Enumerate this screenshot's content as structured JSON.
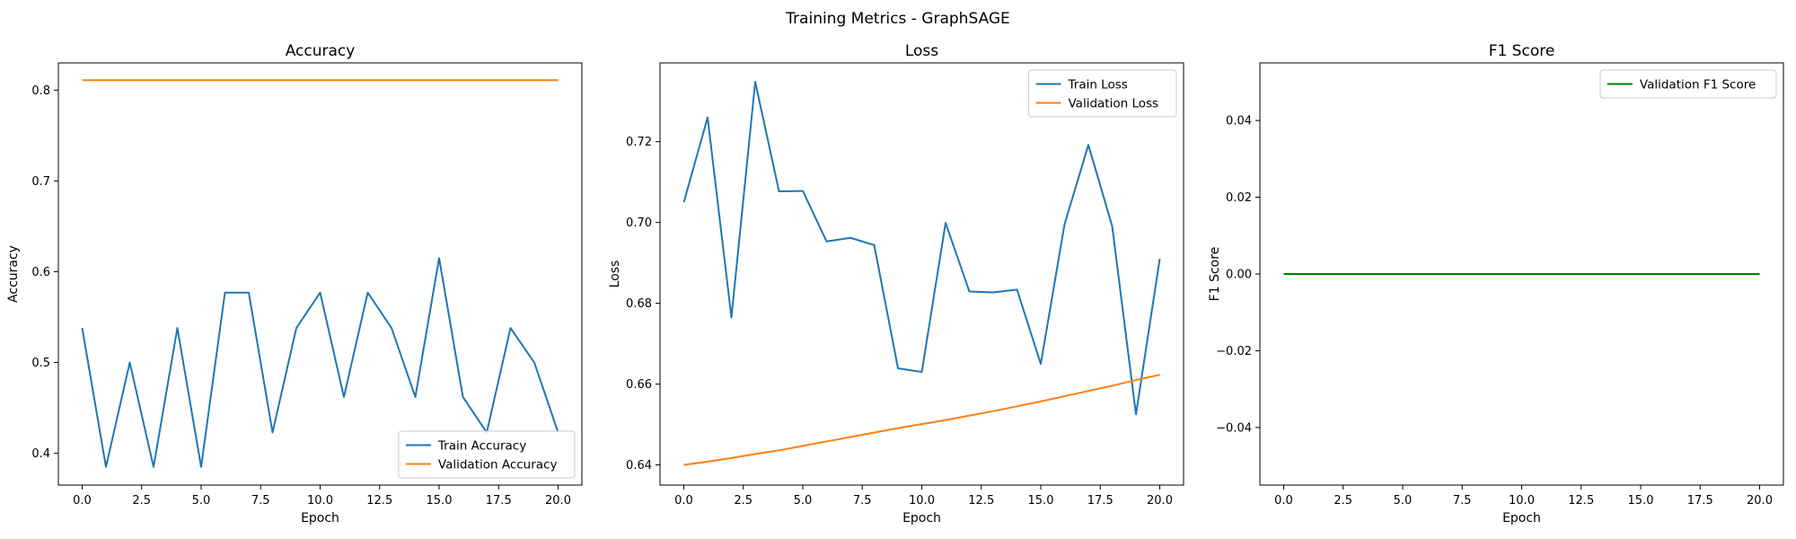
{
  "figure": {
    "title": "Training Metrics - GraphSAGE"
  },
  "colors": {
    "blue": "#1f77b4",
    "orange": "#ff7f0e",
    "green": "#008000"
  },
  "chart_data": [
    {
      "type": "line",
      "title": "Accuracy",
      "xlabel": "Epoch",
      "ylabel": "Accuracy",
      "xlim": [
        -1,
        21
      ],
      "ylim": [
        0.365,
        0.83
      ],
      "xticks": [
        0.0,
        2.5,
        5.0,
        7.5,
        10.0,
        12.5,
        15.0,
        17.5,
        20.0
      ],
      "xtick_labels": [
        "0.0",
        "2.5",
        "5.0",
        "7.5",
        "10.0",
        "12.5",
        "15.0",
        "17.5",
        "20.0"
      ],
      "yticks": [
        0.4,
        0.5,
        0.6,
        0.7,
        0.8
      ],
      "ytick_labels": [
        "0.4",
        "0.5",
        "0.6",
        "0.7",
        "0.8"
      ],
      "legend_position": "lower-right",
      "x": [
        0,
        1,
        2,
        3,
        4,
        5,
        6,
        7,
        8,
        9,
        10,
        11,
        12,
        13,
        14,
        15,
        16,
        17,
        18,
        19,
        20
      ],
      "series": [
        {
          "name": "Train Accuracy",
          "color": "blue",
          "values": [
            0.538,
            0.385,
            0.5,
            0.385,
            0.538,
            0.385,
            0.577,
            0.577,
            0.423,
            0.538,
            0.577,
            0.462,
            0.577,
            0.538,
            0.462,
            0.615,
            0.462,
            0.423,
            0.538,
            0.5,
            0.423
          ]
        },
        {
          "name": "Validation Accuracy",
          "color": "orange",
          "values": [
            0.811,
            0.811,
            0.811,
            0.811,
            0.811,
            0.811,
            0.811,
            0.811,
            0.811,
            0.811,
            0.811,
            0.811,
            0.811,
            0.811,
            0.811,
            0.811,
            0.811,
            0.811,
            0.811,
            0.811,
            0.811
          ]
        }
      ]
    },
    {
      "type": "line",
      "title": "Loss",
      "xlabel": "Epoch",
      "ylabel": "Loss",
      "xlim": [
        -1,
        21
      ],
      "ylim": [
        0.635,
        0.7395
      ],
      "xticks": [
        0.0,
        2.5,
        5.0,
        7.5,
        10.0,
        12.5,
        15.0,
        17.5,
        20.0
      ],
      "xtick_labels": [
        "0.0",
        "2.5",
        "5.0",
        "7.5",
        "10.0",
        "12.5",
        "15.0",
        "17.5",
        "20.0"
      ],
      "yticks": [
        0.64,
        0.66,
        0.68,
        0.7,
        0.72
      ],
      "ytick_labels": [
        "0.64",
        "0.66",
        "0.68",
        "0.70",
        "0.72"
      ],
      "legend_position": "upper-right",
      "x": [
        0,
        1,
        2,
        3,
        4,
        5,
        6,
        7,
        8,
        9,
        10,
        11,
        12,
        13,
        14,
        15,
        16,
        17,
        18,
        19,
        20
      ],
      "series": [
        {
          "name": "Train Loss",
          "color": "blue",
          "values": [
            0.705,
            0.726,
            0.6765,
            0.7348,
            0.7077,
            0.7078,
            0.6953,
            0.6962,
            0.6944,
            0.6639,
            0.663,
            0.6999,
            0.6829,
            0.6827,
            0.6834,
            0.665,
            0.6996,
            0.7192,
            0.6991,
            0.6525,
            0.691
          ]
        },
        {
          "name": "Validation Loss",
          "color": "orange",
          "values": [
            0.64,
            0.6408,
            0.6417,
            0.6427,
            0.6436,
            0.6447,
            0.6458,
            0.6469,
            0.648,
            0.6491,
            0.6501,
            0.6511,
            0.6522,
            0.6533,
            0.6545,
            0.6557,
            0.657,
            0.6583,
            0.6596,
            0.661,
            0.6623
          ]
        }
      ]
    },
    {
      "type": "line",
      "title": "F1 Score",
      "xlabel": "Epoch",
      "ylabel": "F1 Score",
      "xlim": [
        -1,
        21
      ],
      "ylim": [
        -0.055,
        0.055
      ],
      "xticks": [
        0.0,
        2.5,
        5.0,
        7.5,
        10.0,
        12.5,
        15.0,
        17.5,
        20.0
      ],
      "xtick_labels": [
        "0.0",
        "2.5",
        "5.0",
        "7.5",
        "10.0",
        "12.5",
        "15.0",
        "17.5",
        "20.0"
      ],
      "yticks": [
        -0.04,
        -0.02,
        0.0,
        0.02,
        0.04
      ],
      "ytick_labels": [
        "−0.04",
        "−0.02",
        "0.00",
        "0.02",
        "0.04"
      ],
      "legend_position": "upper-right",
      "x": [
        0,
        1,
        2,
        3,
        4,
        5,
        6,
        7,
        8,
        9,
        10,
        11,
        12,
        13,
        14,
        15,
        16,
        17,
        18,
        19,
        20
      ],
      "series": [
        {
          "name": "Validation F1 Score",
          "color": "green",
          "values": [
            0,
            0,
            0,
            0,
            0,
            0,
            0,
            0,
            0,
            0,
            0,
            0,
            0,
            0,
            0,
            0,
            0,
            0,
            0,
            0,
            0
          ]
        }
      ]
    }
  ]
}
